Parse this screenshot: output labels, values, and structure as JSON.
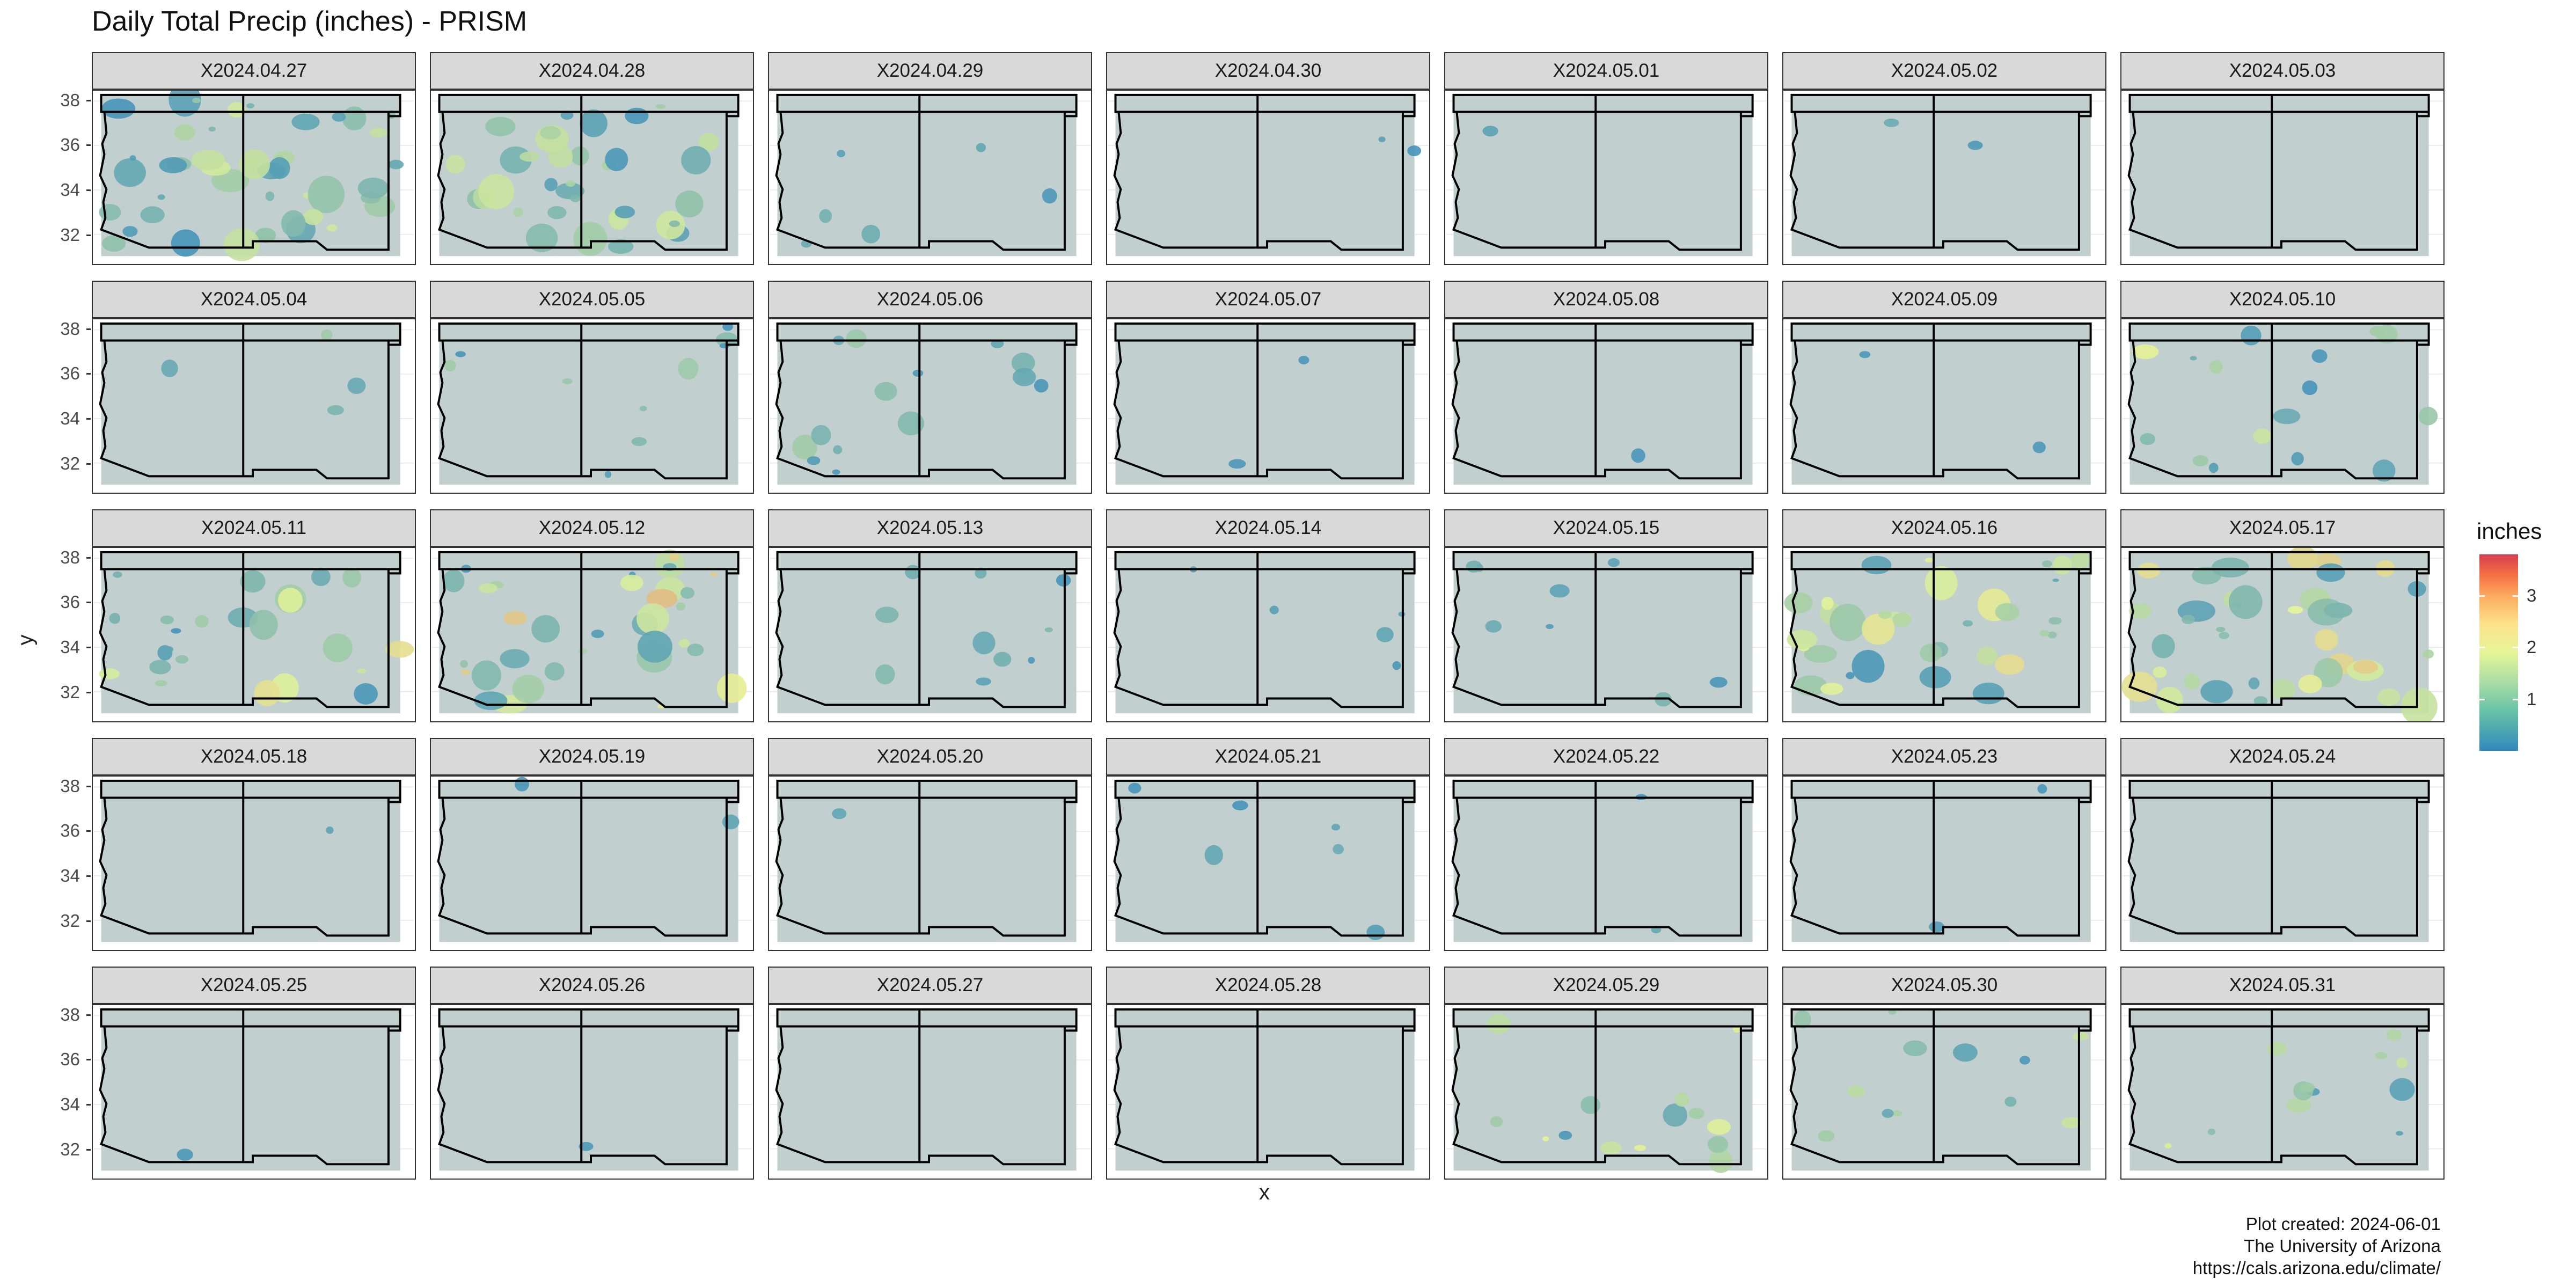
{
  "chart_data": {
    "type": "heatmap",
    "title": "Daily Total Precip (inches) - PRISM",
    "xlabel": "x",
    "ylabel": "y",
    "ylim": [
      31,
      38.3
    ],
    "y_ticks": [
      "32",
      "34",
      "36",
      "38"
    ],
    "legend": {
      "title": "inches",
      "ticks": [
        "1",
        "2",
        "3"
      ],
      "range": [
        0,
        3.8
      ],
      "placement": "right"
    },
    "panel_background": "#c1cfcf",
    "colors": {
      "low": "#3288bd",
      "mid": "#e6f598",
      "high": "#d53e4f"
    },
    "panels": [
      {
        "label": "X2024.04.27",
        "coverage": 0.55,
        "max_in": 1.5
      },
      {
        "label": "X2024.04.28",
        "coverage": 0.45,
        "max_in": 1.5
      },
      {
        "label": "X2024.04.29",
        "coverage": 0.08,
        "max_in": 0.5
      },
      {
        "label": "X2024.04.30",
        "coverage": 0.02,
        "max_in": 0.3
      },
      {
        "label": "X2024.05.01",
        "coverage": 0.01,
        "max_in": 0.3
      },
      {
        "label": "X2024.05.02",
        "coverage": 0.03,
        "max_in": 0.5
      },
      {
        "label": "X2024.05.03",
        "coverage": 0.0,
        "max_in": 0.0
      },
      {
        "label": "X2024.05.04",
        "coverage": 0.05,
        "max_in": 1.0
      },
      {
        "label": "X2024.05.05",
        "coverage": 0.12,
        "max_in": 1.0
      },
      {
        "label": "X2024.05.06",
        "coverage": 0.18,
        "max_in": 1.0
      },
      {
        "label": "X2024.05.07",
        "coverage": 0.03,
        "max_in": 0.5
      },
      {
        "label": "X2024.05.08",
        "coverage": 0.01,
        "max_in": 0.3
      },
      {
        "label": "X2024.05.09",
        "coverage": 0.02,
        "max_in": 0.3
      },
      {
        "label": "X2024.05.10",
        "coverage": 0.2,
        "max_in": 2.0
      },
      {
        "label": "X2024.05.11",
        "coverage": 0.3,
        "max_in": 2.0
      },
      {
        "label": "X2024.05.12",
        "coverage": 0.42,
        "max_in": 2.3
      },
      {
        "label": "X2024.05.13",
        "coverage": 0.12,
        "max_in": 0.7
      },
      {
        "label": "X2024.05.14",
        "coverage": 0.06,
        "max_in": 0.5
      },
      {
        "label": "X2024.05.15",
        "coverage": 0.1,
        "max_in": 0.6
      },
      {
        "label": "X2024.05.16",
        "coverage": 0.45,
        "max_in": 2.0
      },
      {
        "label": "X2024.05.17",
        "coverage": 0.5,
        "max_in": 2.2
      },
      {
        "label": "X2024.05.18",
        "coverage": 0.01,
        "max_in": 0.3
      },
      {
        "label": "X2024.05.19",
        "coverage": 0.02,
        "max_in": 0.3
      },
      {
        "label": "X2024.05.20",
        "coverage": 0.01,
        "max_in": 0.3
      },
      {
        "label": "X2024.05.21",
        "coverage": 0.08,
        "max_in": 0.5
      },
      {
        "label": "X2024.05.22",
        "coverage": 0.03,
        "max_in": 0.4
      },
      {
        "label": "X2024.05.23",
        "coverage": 0.02,
        "max_in": 0.3
      },
      {
        "label": "X2024.05.24",
        "coverage": 0.0,
        "max_in": 0.0
      },
      {
        "label": "X2024.05.25",
        "coverage": 0.01,
        "max_in": 0.3
      },
      {
        "label": "X2024.05.26",
        "coverage": 0.01,
        "max_in": 0.3
      },
      {
        "label": "X2024.05.27",
        "coverage": 0.0,
        "max_in": 0.0
      },
      {
        "label": "X2024.05.28",
        "coverage": 0.0,
        "max_in": 0.0
      },
      {
        "label": "X2024.05.29",
        "coverage": 0.18,
        "max_in": 1.8
      },
      {
        "label": "X2024.05.30",
        "coverage": 0.15,
        "max_in": 1.8
      },
      {
        "label": "X2024.05.31",
        "coverage": 0.15,
        "max_in": 1.8
      }
    ]
  },
  "caption": {
    "line1": "Plot created: 2024-06-01",
    "line2": "The University of Arizona",
    "line3": "https://cals.arizona.edu/climate/"
  }
}
